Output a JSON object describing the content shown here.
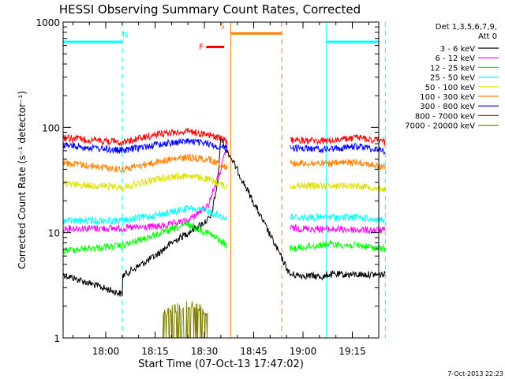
{
  "chart_data": {
    "type": "line",
    "title": "HESSI Observing Summary Count Rates, Corrected",
    "xlabel": "Start Time (07-Oct-13 17:47:02)",
    "ylabel": "Corrected Count Rate (s⁻¹ detector⁻¹)",
    "yscale": "log",
    "xlim_minutes": [
      0,
      96
    ],
    "ylim": [
      1,
      1000
    ],
    "x_ticks": [
      "18:00",
      "18:15",
      "18:30",
      "18:45",
      "19:00",
      "19:15"
    ],
    "y_ticks": [
      "1",
      "10",
      "100",
      "1000"
    ],
    "legend_header": [
      "Det 1,3,5,6,7,9,",
      "Att 0"
    ],
    "series": [
      {
        "name": "3 - 6 keV",
        "color": "#000000",
        "segments": [
          [
            [
              0,
              4
            ],
            [
              18,
              2.6
            ],
            [
              18.1,
              3.9
            ],
            [
              28,
              6
            ],
            [
              33,
              8
            ],
            [
              38,
              10
            ],
            [
              42,
              12
            ],
            [
              45,
              14
            ],
            [
              47,
              30
            ],
            [
              48,
              80
            ],
            [
              50,
              60
            ],
            [
              50.1,
              null
            ],
            [
              69,
              4
            ],
            [
              80,
              3.8
            ],
            [
              80.1,
              4
            ],
            [
              98,
              4
            ]
          ]
        ]
      },
      {
        "name": "6 - 12 keV",
        "color": "#ff00ff",
        "segments": [
          [
            [
              0,
              11
            ],
            [
              18,
              11
            ],
            [
              30,
              11.5
            ],
            [
              38,
              13
            ],
            [
              44,
              18
            ],
            [
              48,
              40
            ],
            [
              50,
              70
            ]
          ],
          [
            [
              69,
              11
            ],
            [
              98,
              10.5
            ]
          ]
        ]
      },
      {
        "name": "12 - 25 keV",
        "color": "#00ff00",
        "segments": [
          [
            [
              0,
              6.8
            ],
            [
              18,
              7.5
            ],
            [
              30,
              10
            ],
            [
              38,
              12
            ],
            [
              44,
              10
            ],
            [
              50,
              7.5
            ]
          ],
          [
            [
              69,
              7
            ],
            [
              80,
              7.8
            ],
            [
              90,
              7.5
            ],
            [
              98,
              7
            ]
          ]
        ]
      },
      {
        "name": "25 - 50 keV",
        "color": "#00ffff",
        "segments": [
          [
            [
              0,
              13
            ],
            [
              18,
              13
            ],
            [
              30,
              15
            ],
            [
              38,
              17
            ],
            [
              44,
              16
            ],
            [
              50,
              13.5
            ]
          ],
          [
            [
              69,
              14
            ],
            [
              80,
              14
            ],
            [
              90,
              14
            ],
            [
              98,
              13
            ]
          ]
        ]
      },
      {
        "name": "50 - 100 keV",
        "color": "#e0e000",
        "segments": [
          [
            [
              0,
              29
            ],
            [
              18,
              27
            ],
            [
              30,
              33
            ],
            [
              38,
              35
            ],
            [
              44,
              32
            ],
            [
              50,
              27
            ]
          ],
          [
            [
              69,
              28
            ],
            [
              80,
              28
            ],
            [
              90,
              28
            ],
            [
              98,
              26
            ]
          ]
        ]
      },
      {
        "name": "100 - 300 keV",
        "color": "#ff7f00",
        "segments": [
          [
            [
              0,
              46
            ],
            [
              18,
              40
            ],
            [
              30,
              48
            ],
            [
              38,
              52
            ],
            [
              44,
              50
            ],
            [
              50,
              42
            ]
          ],
          [
            [
              69,
              46
            ],
            [
              80,
              45
            ],
            [
              90,
              47
            ],
            [
              98,
              41
            ]
          ]
        ]
      },
      {
        "name": "300 - 800 keV",
        "color": "#0000ff",
        "segments": [
          [
            [
              0,
              68
            ],
            [
              18,
              60
            ],
            [
              30,
              70
            ],
            [
              38,
              74
            ],
            [
              44,
              70
            ],
            [
              50,
              62
            ]
          ],
          [
            [
              69,
              64
            ],
            [
              80,
              62
            ],
            [
              90,
              66
            ],
            [
              98,
              60
            ]
          ]
        ]
      },
      {
        "name": "800 - 7000 keV",
        "color": "#ff0000",
        "segments": [
          [
            [
              0,
              80
            ],
            [
              18,
              72
            ],
            [
              30,
              88
            ],
            [
              38,
              92
            ],
            [
              44,
              86
            ],
            [
              50,
              74
            ]
          ],
          [
            [
              69,
              76
            ],
            [
              80,
              74
            ],
            [
              90,
              80
            ],
            [
              98,
              72
            ]
          ]
        ]
      },
      {
        "name": "7000 - 20000 keV",
        "color": "#808000",
        "segments": [
          [
            [
              30,
              1.7
            ],
            [
              34,
              1.9
            ],
            [
              38,
              2.1
            ],
            [
              42,
              1.9
            ],
            [
              44,
              1.6
            ]
          ]
        ]
      }
    ],
    "flags": [
      {
        "label": "N",
        "color": "#00ffff",
        "segments": [
          [
            [
              0,
              18
            ]
          ],
          [
            [
              80,
              98
            ]
          ]
        ],
        "level": 650
      },
      {
        "label": "S",
        "color": "#ff8000",
        "segments": [
          [
            [
              51,
              66.5
            ]
          ]
        ],
        "level": 780
      },
      {
        "label": "F",
        "color": "#ff0000",
        "segments": [
          [
            [
              43.5,
              49
            ]
          ]
        ],
        "level": 580
      }
    ],
    "vertical_lines": [
      {
        "x": 18,
        "color": "#00ffff",
        "style": "dashed"
      },
      {
        "x": 80,
        "color": "#00ffff",
        "style": "solid"
      },
      {
        "x": 98,
        "color": "#00ffff",
        "style": "dashed"
      },
      {
        "x": 51,
        "color": "#ff8000",
        "style": "solid"
      },
      {
        "x": 66.5,
        "color": "#ff8000",
        "style": "dashed"
      }
    ],
    "timestamp": "7-Oct-2013 22:23"
  }
}
